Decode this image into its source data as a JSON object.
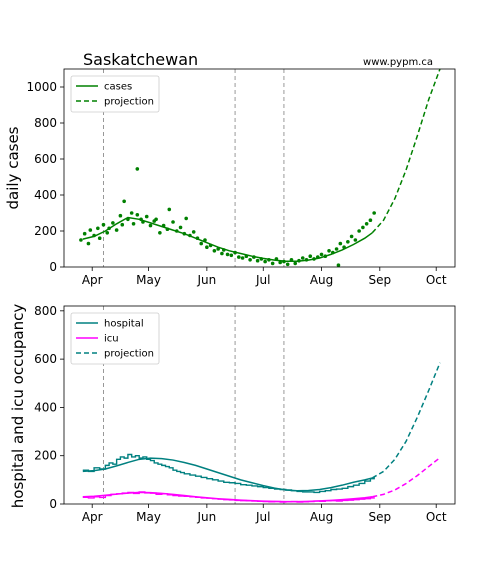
{
  "region_title": "Saskatchewan",
  "website": "www.pypm.ca",
  "colors": {
    "cases": "#008000",
    "hospital": "#008080",
    "icu": "#ff00ff",
    "event_line": "#808080"
  },
  "event_lines_doy": [
    97,
    167,
    193
  ],
  "chart_data": [
    {
      "type": "line",
      "panel": "top",
      "ylabel": "daily cases",
      "ylim": [
        0,
        1100
      ],
      "yticks": [
        0,
        200,
        400,
        600,
        800,
        1000
      ],
      "x_unit": "day of year 2021",
      "xlim": [
        76,
        284
      ],
      "xticks": [
        {
          "label": "Apr",
          "doy": 91
        },
        {
          "label": "May",
          "doy": 121
        },
        {
          "label": "Jun",
          "doy": 152
        },
        {
          "label": "Jul",
          "doy": 182
        },
        {
          "label": "Aug",
          "doy": 213
        },
        {
          "label": "Sep",
          "doy": 244
        },
        {
          "label": "Oct",
          "doy": 274
        }
      ],
      "legend": {
        "position": "top-left",
        "entries": [
          "cases",
          "projection"
        ]
      },
      "series": [
        {
          "name": "cases",
          "style": "solid",
          "color": "#008000",
          "x": [
            86,
            92,
            98,
            104,
            110,
            116,
            122,
            128,
            134,
            140,
            146,
            152,
            158,
            164,
            170,
            176,
            182,
            188,
            194,
            200,
            206,
            212,
            218,
            224,
            230,
            236,
            240
          ],
          "y": [
            155,
            170,
            200,
            240,
            275,
            265,
            245,
            225,
            205,
            185,
            160,
            135,
            110,
            90,
            75,
            60,
            48,
            38,
            32,
            32,
            38,
            50,
            70,
            95,
            125,
            160,
            190
          ]
        },
        {
          "name": "projection",
          "style": "dashed",
          "color": "#008000",
          "x": [
            240,
            246,
            252,
            258,
            264,
            270,
            276
          ],
          "y": [
            190,
            260,
            380,
            540,
            730,
            930,
            1100
          ]
        },
        {
          "name": "cases (daily reports)",
          "style": "points",
          "color": "#008000",
          "x": [
            85,
            87,
            89,
            90,
            92,
            94,
            95,
            97,
            99,
            100,
            102,
            104,
            106,
            107,
            108,
            110,
            112,
            113,
            115,
            117,
            118,
            120,
            122,
            124,
            125,
            127,
            129,
            131,
            132,
            134,
            136,
            138,
            140,
            141,
            143,
            145,
            147,
            149,
            151,
            152,
            154,
            156,
            158,
            160,
            161,
            163,
            165,
            167,
            169,
            171,
            173,
            175,
            177,
            179,
            181,
            183,
            185,
            187,
            189,
            191,
            193,
            195,
            197,
            199,
            201,
            203,
            205,
            207,
            209,
            211,
            213,
            215,
            217,
            219,
            221,
            223,
            225,
            227,
            229,
            231,
            233,
            235,
            237,
            239,
            241,
            115,
            222
          ],
          "y": [
            150,
            185,
            130,
            205,
            175,
            215,
            160,
            235,
            190,
            215,
            245,
            205,
            285,
            235,
            365,
            265,
            300,
            240,
            290,
            265,
            250,
            280,
            230,
            255,
            265,
            190,
            230,
            210,
            320,
            250,
            200,
            220,
            185,
            270,
            175,
            195,
            160,
            130,
            150,
            110,
            120,
            90,
            100,
            75,
            95,
            70,
            65,
            80,
            55,
            50,
            60,
            40,
            55,
            35,
            45,
            30,
            40,
            20,
            45,
            25,
            30,
            15,
            40,
            20,
            35,
            50,
            40,
            60,
            45,
            55,
            70,
            60,
            90,
            80,
            100,
            130,
            110,
            140,
            170,
            150,
            200,
            220,
            240,
            260,
            300,
            545,
            10
          ]
        }
      ]
    },
    {
      "type": "line",
      "panel": "bottom",
      "ylabel": "hospital and icu occupancy",
      "ylim": [
        0,
        820
      ],
      "yticks": [
        0,
        200,
        400,
        600,
        800
      ],
      "x_unit": "day of year 2021",
      "xlim": [
        76,
        284
      ],
      "xticks": [
        {
          "label": "Apr",
          "doy": 91
        },
        {
          "label": "May",
          "doy": 121
        },
        {
          "label": "Jun",
          "doy": 152
        },
        {
          "label": "Jul",
          "doy": 182
        },
        {
          "label": "Aug",
          "doy": 213
        },
        {
          "label": "Sep",
          "doy": 244
        },
        {
          "label": "Oct",
          "doy": 274
        }
      ],
      "legend": {
        "position": "top-left",
        "entries": [
          "hospital",
          "icu",
          "projection"
        ]
      },
      "series": [
        {
          "name": "hospital",
          "style": "solid",
          "color": "#008080",
          "x": [
            86,
            92,
            98,
            104,
            110,
            116,
            122,
            128,
            134,
            140,
            146,
            152,
            158,
            164,
            170,
            176,
            182,
            188,
            194,
            200,
            206,
            212,
            218,
            224,
            230,
            236,
            240
          ],
          "y": [
            135,
            138,
            145,
            158,
            172,
            185,
            190,
            188,
            182,
            172,
            160,
            145,
            130,
            115,
            100,
            88,
            76,
            66,
            58,
            55,
            56,
            60,
            68,
            78,
            90,
            100,
            108
          ]
        },
        {
          "name": "projection",
          "style": "dashed",
          "color": "#008080",
          "x": [
            240,
            246,
            252,
            258,
            264,
            270,
            276
          ],
          "y": [
            108,
            135,
            185,
            260,
            360,
            470,
            585
          ]
        },
        {
          "name": "icu",
          "style": "solid",
          "color": "#ff00ff",
          "x": [
            86,
            92,
            98,
            104,
            110,
            116,
            122,
            128,
            134,
            140,
            146,
            152,
            158,
            164,
            170,
            176,
            182,
            188,
            194,
            200,
            206,
            212,
            218,
            224,
            230,
            236,
            240
          ],
          "y": [
            30,
            32,
            36,
            41,
            45,
            48,
            47,
            44,
            40,
            35,
            30,
            26,
            22,
            19,
            16,
            14,
            12,
            11,
            10,
            10,
            11,
            13,
            15,
            18,
            22,
            26,
            30
          ]
        },
        {
          "name": "icu projection",
          "style": "dashed",
          "color": "#ff00ff",
          "x": [
            240,
            246,
            252,
            258,
            264,
            270,
            276
          ],
          "y": [
            30,
            40,
            58,
            85,
            118,
            155,
            192
          ]
        },
        {
          "name": "hospital (data)",
          "style": "step",
          "color": "#008080",
          "x": [
            86,
            89,
            92,
            95,
            98,
            100,
            102,
            104,
            106,
            108,
            110,
            112,
            114,
            116,
            118,
            120,
            122,
            124,
            126,
            128,
            130,
            132,
            134,
            136,
            138,
            140,
            143,
            146,
            149,
            152,
            155,
            158,
            161,
            164,
            167,
            170,
            173,
            176,
            179,
            182,
            185,
            188,
            191,
            194,
            197,
            200,
            203,
            206,
            209,
            212,
            215,
            218,
            221,
            224,
            227,
            230,
            233,
            236,
            239,
            241
          ],
          "y": [
            140,
            135,
            150,
            145,
            160,
            170,
            165,
            185,
            195,
            190,
            205,
            195,
            200,
            190,
            195,
            185,
            180,
            170,
            165,
            160,
            155,
            150,
            140,
            135,
            130,
            125,
            120,
            115,
            110,
            105,
            100,
            95,
            90,
            88,
            85,
            80,
            78,
            75,
            72,
            68,
            65,
            62,
            60,
            58,
            55,
            52,
            50,
            50,
            48,
            52,
            55,
            60,
            62,
            65,
            72,
            78,
            85,
            95,
            105,
            112
          ]
        },
        {
          "name": "icu (data)",
          "style": "step",
          "color": "#ff00ff",
          "x": [
            86,
            89,
            92,
            95,
            98,
            101,
            104,
            107,
            110,
            113,
            116,
            119,
            122,
            125,
            128,
            131,
            134,
            137,
            140,
            143,
            146,
            149,
            152,
            155,
            158,
            161,
            164,
            167,
            170,
            173,
            176,
            179,
            182,
            185,
            188,
            191,
            194,
            197,
            200,
            203,
            206,
            209,
            212,
            215,
            218,
            221,
            224,
            227,
            230,
            233,
            236,
            239,
            241
          ],
          "y": [
            28,
            25,
            30,
            27,
            35,
            40,
            42,
            45,
            48,
            44,
            50,
            46,
            45,
            40,
            42,
            38,
            35,
            33,
            32,
            30,
            28,
            25,
            24,
            22,
            20,
            18,
            17,
            15,
            14,
            13,
            12,
            11,
            10,
            9,
            10,
            8,
            9,
            10,
            8,
            9,
            10,
            12,
            11,
            13,
            14,
            12,
            15,
            16,
            18,
            20,
            22,
            25,
            28
          ]
        }
      ]
    }
  ]
}
